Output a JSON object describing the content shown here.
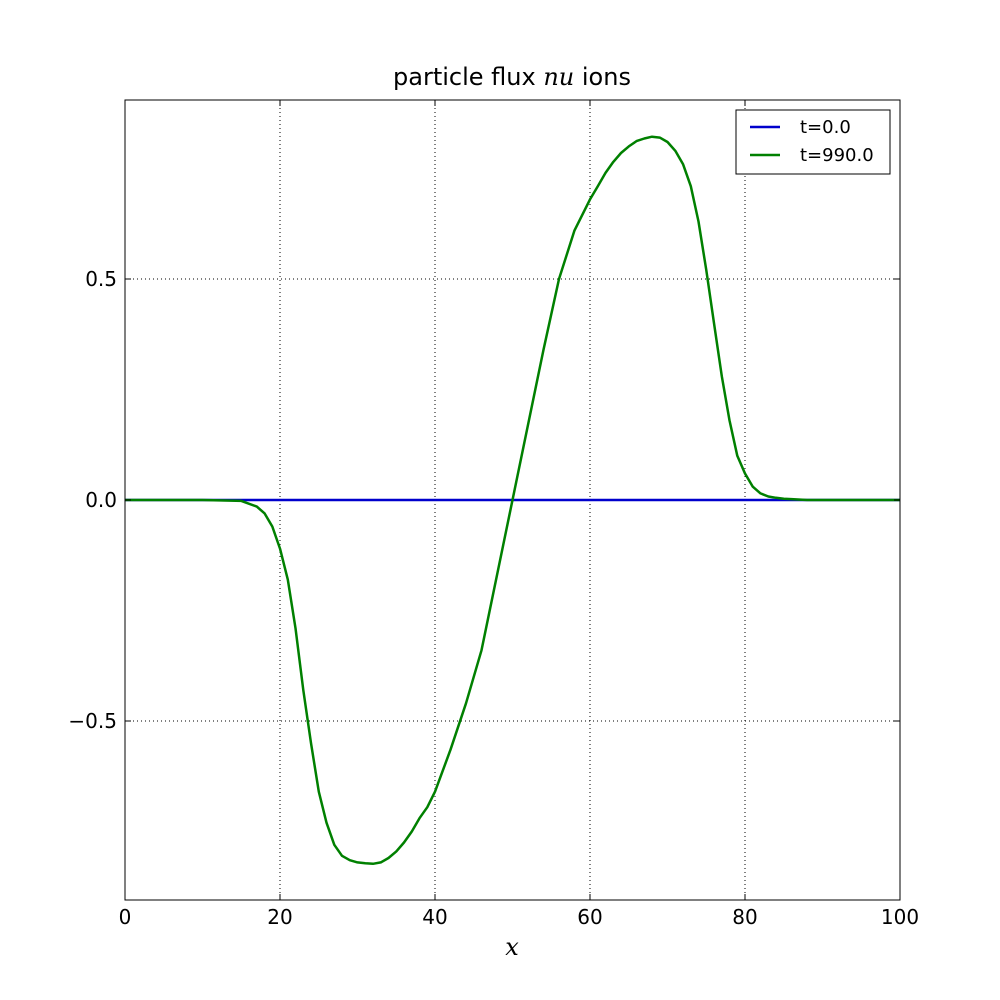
{
  "chart_data": {
    "type": "line",
    "title_prefix": "particle flux ",
    "title_math": "nu",
    "title_suffix": " ions",
    "xlabel": "x",
    "ylabel": "",
    "xlim": [
      0,
      100
    ],
    "ylim": [
      -0.905,
      0.905
    ],
    "x_ticks": [
      0,
      20,
      40,
      60,
      80,
      100
    ],
    "x_tick_labels": [
      "0",
      "20",
      "40",
      "60",
      "80",
      "100"
    ],
    "y_ticks": [
      -0.5,
      0.0,
      0.5
    ],
    "y_tick_labels": [
      "−0.5",
      "0.0",
      "0.5"
    ],
    "grid": true,
    "legend_position": "top-right",
    "series": [
      {
        "name": "t=0.0",
        "color": "#0000cc",
        "x": [
          0,
          100
        ],
        "y": [
          0.0,
          0.0
        ]
      },
      {
        "name": "t=990.0",
        "color": "#008000",
        "x": [
          0,
          10,
          15,
          17,
          18,
          19,
          20,
          21,
          22,
          23,
          24,
          25,
          26,
          27,
          28,
          29,
          30,
          31,
          32,
          33,
          34,
          35,
          36,
          37,
          38,
          39,
          40,
          42,
          44,
          46,
          48,
          50,
          52,
          54,
          56,
          58,
          60,
          61,
          62,
          63,
          64,
          65,
          66,
          67,
          68,
          69,
          70,
          71,
          72,
          73,
          74,
          75,
          76,
          77,
          78,
          79,
          80,
          81,
          82,
          83,
          84,
          85,
          86,
          88,
          90,
          100
        ],
        "y": [
          0.0,
          0.0,
          -0.002,
          -0.015,
          -0.03,
          -0.06,
          -0.11,
          -0.18,
          -0.29,
          -0.43,
          -0.55,
          -0.66,
          -0.73,
          -0.78,
          -0.805,
          -0.815,
          -0.82,
          -0.822,
          -0.823,
          -0.82,
          -0.81,
          -0.795,
          -0.775,
          -0.75,
          -0.72,
          -0.695,
          -0.66,
          -0.565,
          -0.46,
          -0.34,
          -0.17,
          0.0,
          0.17,
          0.34,
          0.5,
          0.61,
          0.68,
          0.71,
          0.74,
          0.765,
          0.785,
          0.8,
          0.812,
          0.818,
          0.822,
          0.82,
          0.81,
          0.79,
          0.76,
          0.71,
          0.63,
          0.52,
          0.4,
          0.28,
          0.18,
          0.1,
          0.06,
          0.03,
          0.015,
          0.008,
          0.005,
          0.003,
          0.002,
          0.0,
          0.0,
          0.0
        ]
      }
    ]
  }
}
